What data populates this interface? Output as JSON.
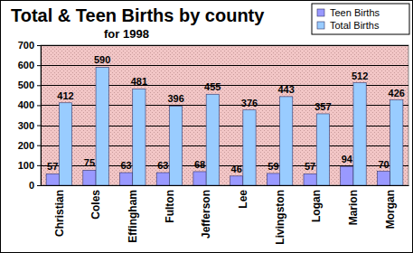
{
  "chart_data": {
    "type": "bar",
    "title": "Total & Teen Births by county",
    "subtitle": "for 1998",
    "categories": [
      "Christian",
      "Coles",
      "Effingham",
      "Fulton",
      "Jefferson",
      "Lee",
      "Livingston",
      "Logan",
      "Marion",
      "Morgan"
    ],
    "series": [
      {
        "name": "Teen Births",
        "color": "#9999ff",
        "values": [
          57,
          75,
          63,
          63,
          68,
          46,
          59,
          57,
          94,
          70
        ]
      },
      {
        "name": "Total Births",
        "color": "#99ccff",
        "values": [
          412,
          590,
          481,
          396,
          455,
          376,
          443,
          357,
          512,
          426
        ]
      }
    ],
    "ylim": [
      0,
      700
    ],
    "yticks": [
      0,
      100,
      200,
      300,
      400,
      500,
      600,
      700
    ],
    "grid": true,
    "legend": "top-right",
    "data_labels": true
  }
}
